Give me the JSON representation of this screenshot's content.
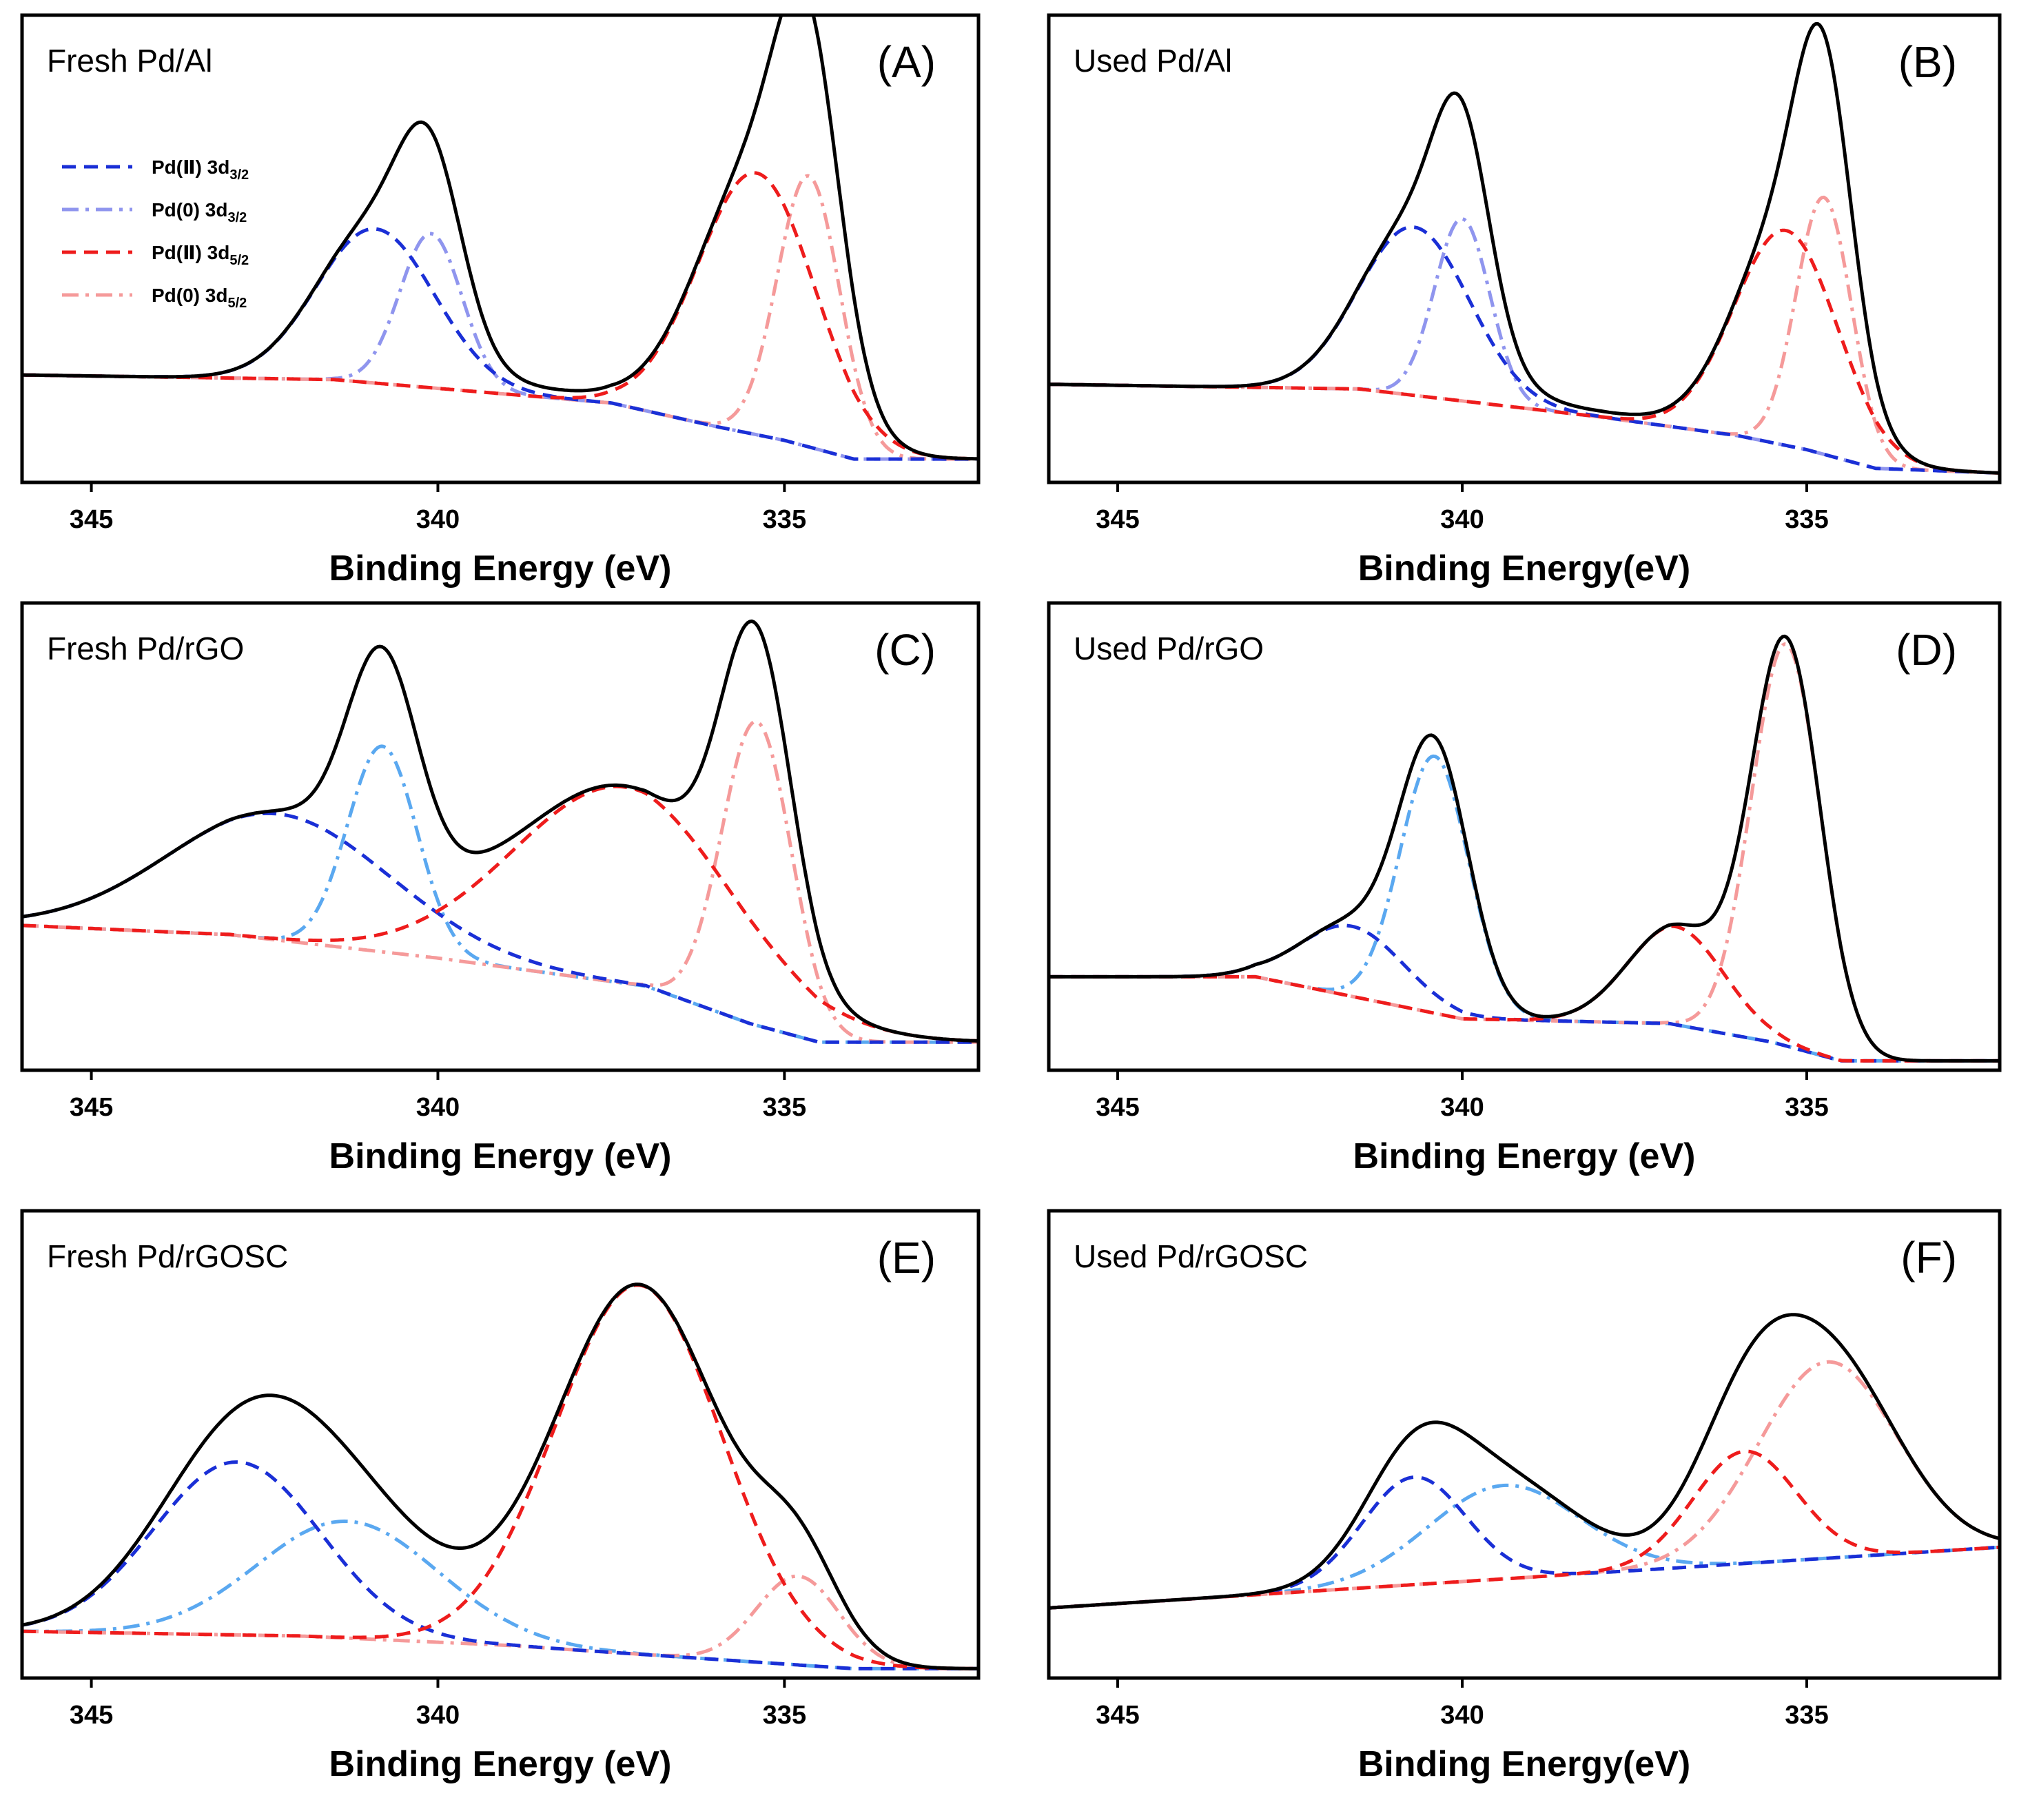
{
  "figure": {
    "x_axis": {
      "domain": [
        346,
        332.2
      ],
      "ticks": [
        345,
        340,
        335
      ]
    },
    "legend": [
      {
        "id": "pd2_32",
        "text": "Pd(Ⅱ) 3d",
        "sub": "3/2",
        "color": "#1a2fd6",
        "dash": "dash"
      },
      {
        "id": "pd0_32",
        "text": "Pd(0) 3d",
        "sub": "3/2",
        "color": "#8f95ee",
        "dash": "dashdot"
      },
      {
        "id": "pd2_52",
        "text": "Pd(Ⅱ) 3d",
        "sub": "5/2",
        "color": "#ee1c1c",
        "dash": "dash"
      },
      {
        "id": "pd0_52",
        "text": "Pd(0) 3d",
        "sub": "5/2",
        "color": "#f59a9a",
        "dash": "dashdot"
      }
    ]
  },
  "chart_data": [
    {
      "panel": "A",
      "letter": "(A)",
      "title": "Fresh Pd/Al",
      "type": "line",
      "xlabel": "Binding Energy (eV)",
      "ylabel": "",
      "xlim": [
        346,
        332.2
      ],
      "ylim": [
        0,
        1
      ],
      "show_legend": true,
      "colors": {
        "pd0_32": "#8f95ee",
        "pd0_52": "#f59a9a"
      },
      "background": [
        [
          346,
          0.23
        ],
        [
          341.5,
          0.22
        ],
        [
          337.5,
          0.17
        ],
        [
          336,
          0.12
        ],
        [
          335,
          0.09
        ],
        [
          334,
          0.05
        ],
        [
          332.2,
          0.05
        ]
      ],
      "peaks": [
        {
          "series": "pd2_32",
          "center": 340.9,
          "height": 0.33,
          "width": 0.85
        },
        {
          "series": "pd0_32",
          "center": 340.1,
          "height": 0.33,
          "width": 0.45
        },
        {
          "series": "pd2_52",
          "center": 335.4,
          "height": 0.56,
          "width": 0.85
        },
        {
          "series": "pd0_52",
          "center": 334.65,
          "height": 0.58,
          "width": 0.45
        }
      ],
      "offset_peaks": [
        {
          "center": 338.6,
          "height": 0.015,
          "width": 1.5
        }
      ]
    },
    {
      "panel": "B",
      "letter": "(B)",
      "title": "Used Pd/Al",
      "type": "line",
      "xlabel": "Binding Energy(eV)",
      "ylabel": "",
      "xlim": [
        346,
        332.2
      ],
      "ylim": [
        0,
        1
      ],
      "show_legend": false,
      "colors": {
        "pd0_32": "#8f95ee",
        "pd0_52": "#f59a9a"
      },
      "background": [
        [
          346,
          0.21
        ],
        [
          341.5,
          0.2
        ],
        [
          338,
          0.14
        ],
        [
          336,
          0.1
        ],
        [
          335,
          0.07
        ],
        [
          334,
          0.03
        ],
        [
          332.2,
          0.02
        ]
      ],
      "peaks": [
        {
          "series": "pd2_32",
          "center": 340.7,
          "height": 0.36,
          "width": 0.8
        },
        {
          "series": "pd0_32",
          "center": 340.0,
          "height": 0.39,
          "width": 0.4
        },
        {
          "series": "pd2_52",
          "center": 335.3,
          "height": 0.46,
          "width": 0.75
        },
        {
          "series": "pd0_52",
          "center": 334.75,
          "height": 0.55,
          "width": 0.4
        }
      ],
      "offset_peaks": [
        {
          "center": 338.6,
          "height": 0.012,
          "width": 1.5
        }
      ]
    },
    {
      "panel": "C",
      "letter": "(C)",
      "title": "Fresh Pd/rGO",
      "type": "line",
      "xlabel": "Binding Energy (eV)",
      "ylabel": "",
      "xlim": [
        346,
        332.2
      ],
      "ylim": [
        0,
        1
      ],
      "show_legend": false,
      "colors": {
        "pd0_32": "#5aa8f0",
        "pd0_52": "#f59a9a"
      },
      "background": [
        [
          346,
          0.31
        ],
        [
          343,
          0.29
        ],
        [
          340,
          0.24
        ],
        [
          337,
          0.18
        ],
        [
          335.5,
          0.1
        ],
        [
          334.5,
          0.06
        ],
        [
          332.2,
          0.06
        ]
      ],
      "peaks": [
        {
          "series": "pd2_32",
          "center": 342.3,
          "height": 0.27,
          "width": 1.6
        },
        {
          "series": "pd0_32",
          "center": 340.8,
          "height": 0.44,
          "width": 0.5
        },
        {
          "series": "pd2_52",
          "center": 337.3,
          "height": 0.42,
          "width": 1.6
        },
        {
          "series": "pd0_52",
          "center": 335.4,
          "height": 0.65,
          "width": 0.5
        }
      ],
      "offset_peaks": []
    },
    {
      "panel": "D",
      "letter": "(D)",
      "title": "Used Pd/rGO",
      "type": "line",
      "xlabel": "Binding Energy (eV)",
      "ylabel": "",
      "xlim": [
        346,
        332.2
      ],
      "ylim": [
        0,
        1
      ],
      "show_legend": false,
      "colors": {
        "pd0_32": "#5aa8f0",
        "pd0_52": "#f59a9a"
      },
      "background": [
        [
          346,
          0.2
        ],
        [
          343,
          0.2
        ],
        [
          340,
          0.11
        ],
        [
          337,
          0.1
        ],
        [
          335.5,
          0.06
        ],
        [
          334.5,
          0.02
        ],
        [
          332.2,
          0.02
        ]
      ],
      "peaks": [
        {
          "series": "pd2_32",
          "center": 341.6,
          "height": 0.15,
          "width": 0.75
        },
        {
          "series": "pd0_32",
          "center": 340.4,
          "height": 0.55,
          "width": 0.5
        },
        {
          "series": "pd2_52",
          "center": 336.9,
          "height": 0.21,
          "width": 0.7
        },
        {
          "series": "pd0_52",
          "center": 335.3,
          "height": 0.86,
          "width": 0.5
        }
      ],
      "offset_peaks": []
    },
    {
      "panel": "E",
      "letter": "(E)",
      "title": "Fresh Pd/rGOSC",
      "type": "line",
      "xlabel": "Binding Energy (eV)",
      "ylabel": "",
      "xlim": [
        346,
        332.2
      ],
      "ylim": [
        0,
        1
      ],
      "show_legend": false,
      "colors": {
        "pd0_32": "#5aa8f0",
        "pd0_52": "#f59a9a"
      },
      "background": [
        [
          346,
          0.1
        ],
        [
          342,
          0.09
        ],
        [
          339,
          0.07
        ],
        [
          336,
          0.04
        ],
        [
          334,
          0.02
        ],
        [
          332.2,
          0.02
        ]
      ],
      "peaks": [
        {
          "series": "pd2_32",
          "center": 342.9,
          "height": 0.37,
          "width": 1.2
        },
        {
          "series": "pd0_32",
          "center": 341.3,
          "height": 0.25,
          "width": 1.3
        },
        {
          "series": "pd2_52",
          "center": 337.1,
          "height": 0.79,
          "width": 1.2
        },
        {
          "series": "pd0_52",
          "center": 334.8,
          "height": 0.19,
          "width": 0.6
        }
      ],
      "offset_peaks": []
    },
    {
      "panel": "F",
      "letter": "(F)",
      "title": "Used Pd/rGOSC",
      "type": "line",
      "xlabel": "Binding Energy(eV)",
      "ylabel": "",
      "xlim": [
        346,
        332.2
      ],
      "ylim": [
        0,
        1
      ],
      "show_legend": false,
      "colors": {
        "pd0_32": "#5aa8f0",
        "pd0_52": "#f59a9a"
      },
      "background": [
        [
          346,
          0.15
        ],
        [
          332.2,
          0.28
        ]
      ],
      "peaks": [
        {
          "series": "pd2_32",
          "center": 340.7,
          "height": 0.23,
          "width": 0.75
        },
        {
          "series": "pd0_32",
          "center": 339.4,
          "height": 0.2,
          "width": 1.1
        },
        {
          "series": "pd2_52",
          "center": 335.9,
          "height": 0.24,
          "width": 0.75
        },
        {
          "series": "pd0_52",
          "center": 334.7,
          "height": 0.42,
          "width": 1.0
        }
      ],
      "offset_peaks": []
    }
  ]
}
